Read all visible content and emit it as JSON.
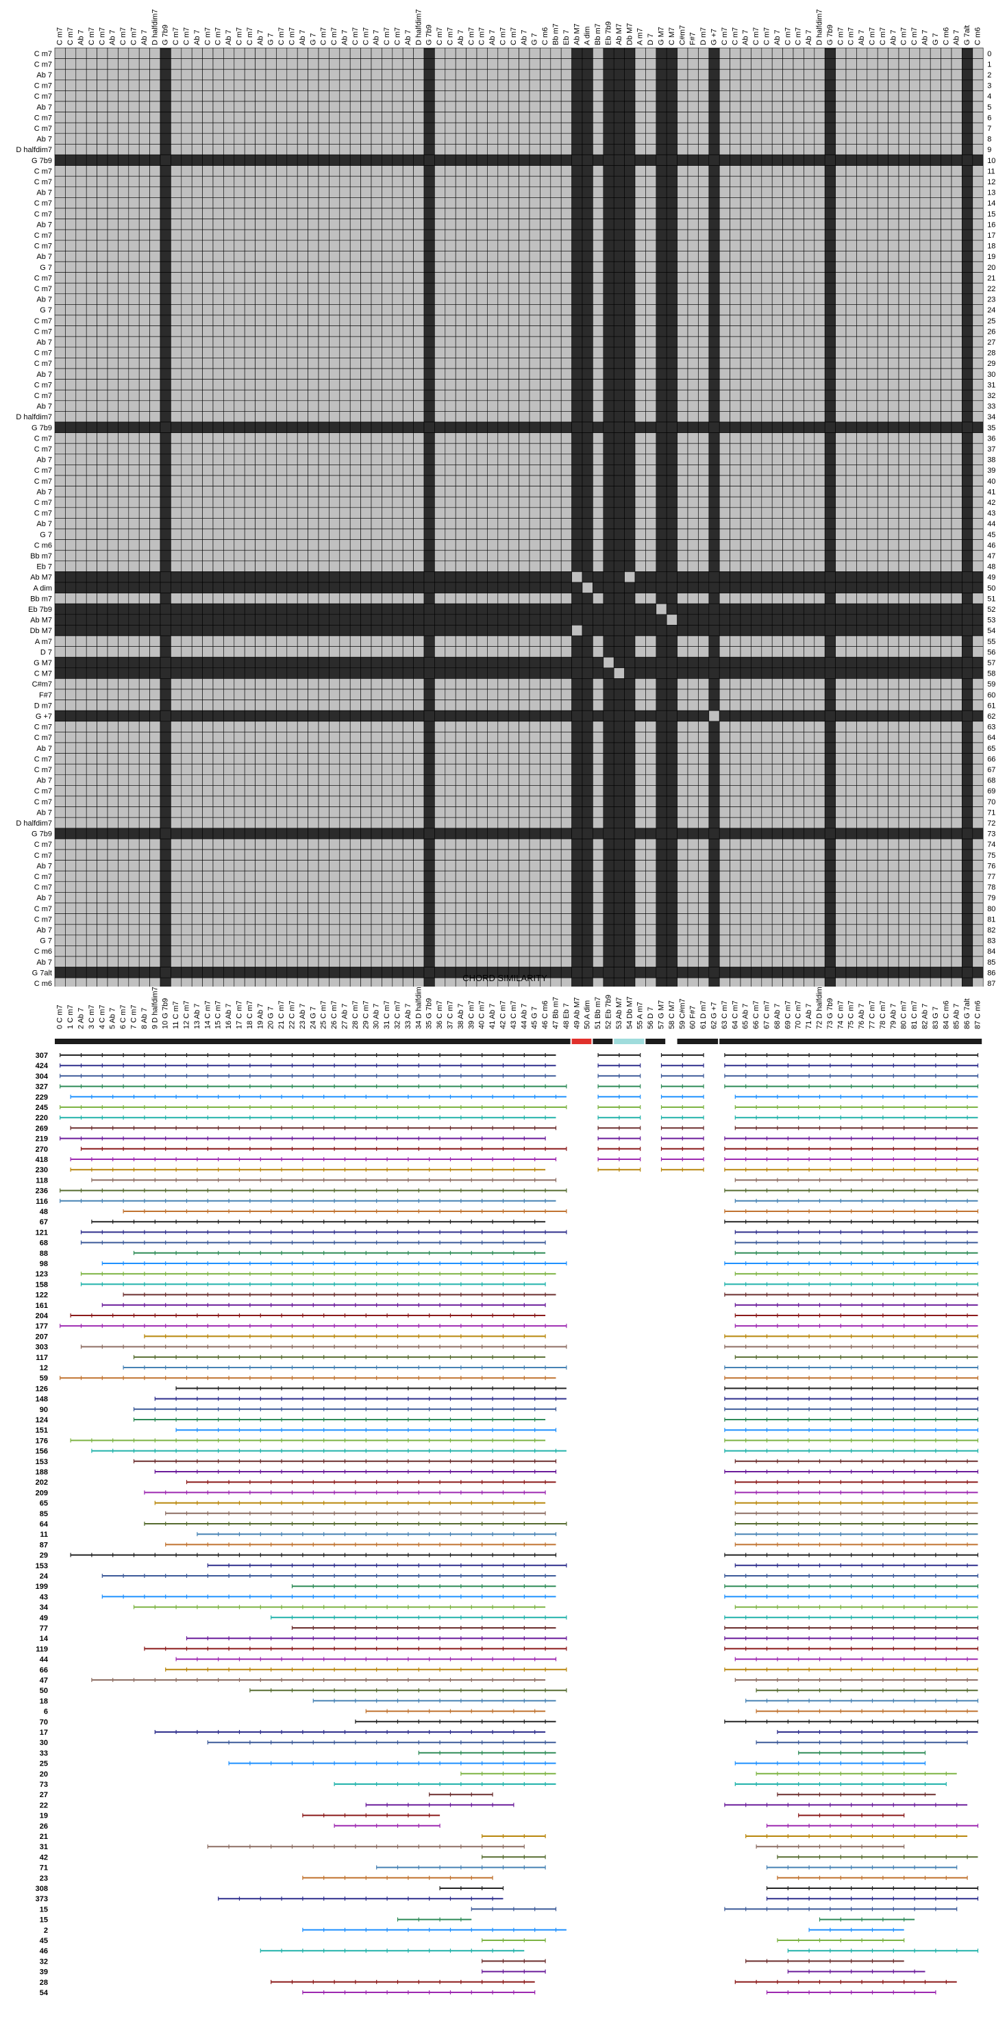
{
  "chart_data": [
    {
      "type": "heatmap",
      "title": "",
      "xlabel": "CHORD SIMILARITY",
      "ylabel": "",
      "chords": [
        "C m7",
        "C m7",
        "Ab 7",
        "C m7",
        "C m7",
        "Ab 7",
        "C m7",
        "C m7",
        "Ab 7",
        "D halfdim7",
        "G 7b9",
        "C m7",
        "C m7",
        "Ab 7",
        "C m7",
        "C m7",
        "Ab 7",
        "C m7",
        "C m7",
        "Ab 7",
        "G 7",
        "C m7",
        "C m7",
        "Ab 7",
        "G 7",
        "C m7",
        "C m7",
        "Ab 7",
        "C m7",
        "C m7",
        "Ab 7",
        "C m7",
        "C m7",
        "Ab 7",
        "D halfdim7",
        "G 7b9",
        "C m7",
        "C m7",
        "Ab 7",
        "C m7",
        "C m7",
        "Ab 7",
        "C m7",
        "C m7",
        "Ab 7",
        "G 7",
        "C m6",
        "Bb m7",
        "Eb 7",
        "Ab M7",
        "A dim",
        "Bb m7",
        "Eb 7b9",
        "Ab M7",
        "Db M7",
        "A m7",
        "D 7",
        "G M7",
        "C M7",
        "C#m7",
        "F#7",
        "D m7",
        "G +7",
        "C m7",
        "C m7",
        "Ab 7",
        "C m7",
        "C m7",
        "Ab 7",
        "C m7",
        "C m7",
        "Ab 7",
        "D halfdim7",
        "G 7b9",
        "C m7",
        "C m7",
        "Ab 7",
        "C m7",
        "C m7",
        "Ab 7",
        "C m7",
        "C m7",
        "Ab 7",
        "G 7",
        "C m6",
        "Ab 7",
        "G 7alt",
        "C m6"
      ],
      "indices_shown": "0-87",
      "cell_states": [
        "light",
        "dark"
      ],
      "dark_rows": [
        10,
        35,
        49,
        50,
        52,
        53,
        54,
        57,
        58,
        62,
        73,
        86
      ],
      "dark_cols_in_other_rows": [
        10,
        35,
        49,
        50,
        52,
        53,
        54,
        57,
        58,
        62,
        73,
        86
      ],
      "light_pairs": [
        [
          49,
          49
        ],
        [
          50,
          50
        ],
        [
          49,
          54
        ],
        [
          54,
          49
        ],
        [
          52,
          57
        ],
        [
          57,
          52
        ],
        [
          53,
          58
        ],
        [
          58,
          53
        ],
        [
          62,
          62
        ]
      ],
      "colors": {
        "light": "#c0c0c0",
        "dark": "#2b2b2b",
        "grid": "#000000"
      }
    },
    {
      "type": "segments",
      "title": "",
      "row_labels": [
        "307",
        "424",
        "304",
        "327",
        "229",
        "245",
        "220",
        "269",
        "219",
        "270",
        "418",
        "230",
        "118",
        "236",
        "116",
        "48",
        "67",
        "121",
        "68",
        "88",
        "98",
        "123",
        "158",
        "122",
        "161",
        "204",
        "177",
        "207",
        "303",
        "117",
        "12",
        "59",
        "126",
        "148",
        "90",
        "124",
        "151",
        "176",
        "156",
        "153",
        "188",
        "202",
        "209",
        "65",
        "85",
        "64",
        "11",
        "87",
        "29",
        "153",
        "24",
        "199",
        "43",
        "34",
        "49",
        "77",
        "14",
        "119",
        "44",
        "66",
        "47",
        "50",
        "18",
        "6",
        "70",
        "17",
        "30",
        "33",
        "25",
        "20",
        "73",
        "27",
        "22",
        "19",
        "26",
        "21",
        "31",
        "42",
        "71",
        "23",
        "308",
        "373",
        "15",
        "15",
        "2",
        "45",
        "46",
        "32",
        "39",
        "28",
        "54"
      ],
      "header_bar_colors": [
        "#1b1b1b",
        "#e0302b",
        "#1b1b1b",
        "#9fdcdc",
        "#1b1b1b",
        "#1b1b1b"
      ],
      "palette": [
        "#222222",
        "#2e2e8c",
        "#3b5998",
        "#2e8b57",
        "#1e90ff",
        "#7cb342",
        "#20b2aa",
        "#6b2d2d",
        "#6a1b9a",
        "#8b1a1a",
        "#9c27b0",
        "#b8860b",
        "#8d6e63",
        "#556b2f",
        "#4682b4",
        "#c0722f"
      ]
    }
  ]
}
